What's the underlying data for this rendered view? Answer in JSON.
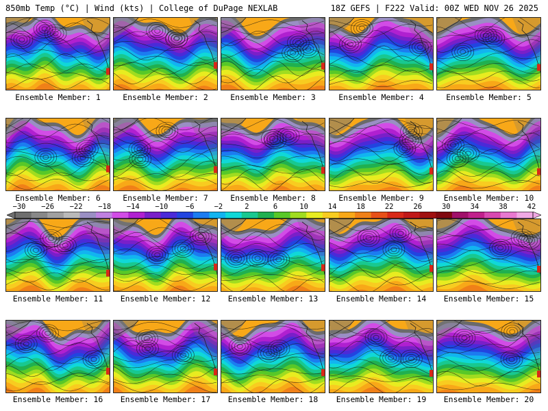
{
  "header": {
    "left": "850mb Temp (°C) | Wind (kts) | College of DuPage NEXLAB",
    "right": "18Z GEFS | F222 Valid: 00Z WED NOV 26 2025"
  },
  "members": [
    {
      "label": "Ensemble Member: 1"
    },
    {
      "label": "Ensemble Member: 2"
    },
    {
      "label": "Ensemble Member: 3"
    },
    {
      "label": "Ensemble Member: 4"
    },
    {
      "label": "Ensemble Member: 5"
    },
    {
      "label": "Ensemble Member: 6"
    },
    {
      "label": "Ensemble Member: 7"
    },
    {
      "label": "Ensemble Member: 8"
    },
    {
      "label": "Ensemble Member: 9"
    },
    {
      "label": "Ensemble Member: 10"
    },
    {
      "label": "Ensemble Member: 11"
    },
    {
      "label": "Ensemble Member: 12"
    },
    {
      "label": "Ensemble Member: 13"
    },
    {
      "label": "Ensemble Member: 14"
    },
    {
      "label": "Ensemble Member: 15"
    },
    {
      "label": "Ensemble Member: 16"
    },
    {
      "label": "Ensemble Member: 17"
    },
    {
      "label": "Ensemble Member: 18"
    },
    {
      "label": "Ensemble Member: 19"
    },
    {
      "label": "Ensemble Member: 20"
    }
  ],
  "colorbar": {
    "labels": [
      "−30",
      "−26",
      "−22",
      "−18",
      "−14",
      "−10",
      "−6",
      "−2",
      "2",
      "6",
      "10",
      "14",
      "18",
      "22",
      "26",
      "30",
      "34",
      "38",
      "42"
    ],
    "colors": [
      "#6e6e6e",
      "#888888",
      "#a0a0a0",
      "#b9b9b9",
      "#9a8fc4",
      "#c080e0",
      "#d24ce6",
      "#b020d0",
      "#7a1fc8",
      "#4b2ad8",
      "#2244e0",
      "#1c7cf0",
      "#12b4f0",
      "#10d8d8",
      "#18c890",
      "#20b050",
      "#58c828",
      "#a0dc20",
      "#e8ec20",
      "#f8cc20",
      "#f8a818",
      "#f08018",
      "#e85018",
      "#d82818",
      "#c01818",
      "#a01010",
      "#800810",
      "#a0106a",
      "#c0208c",
      "#d848b0",
      "#e878d0",
      "#f0a8e4"
    ]
  }
}
